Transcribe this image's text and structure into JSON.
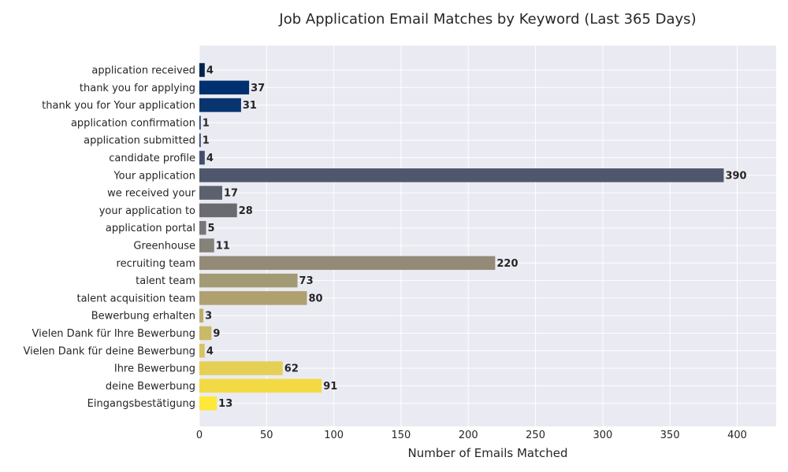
{
  "chart_data": {
    "type": "bar",
    "orientation": "horizontal",
    "title": "Job Application Email Matches by Keyword (Last 365 Days)",
    "xlabel": "Number of Emails Matched",
    "ylabel": "",
    "xlim": [
      0,
      429
    ],
    "xticks": [
      0,
      50,
      100,
      150,
      200,
      250,
      300,
      350,
      400
    ],
    "grid": true,
    "legend": "none",
    "background": "#eaeaf2",
    "categories": [
      "application received",
      "thank you for applying",
      "thank you for Your application",
      "application confirmation",
      "application submitted",
      "candidate profile",
      "Your application",
      "we received your",
      "your application to",
      "application portal",
      "Greenhouse",
      "recruiting team",
      "talent team",
      "talent acquisition team",
      "Bewerbung erhalten",
      "Vielen Dank für Ihre Bewerbung",
      "Vielen Dank für deine Bewerbung",
      "Ihre Bewerbung",
      "deine Bewerbung",
      "Eingangsbestätigung"
    ],
    "values": [
      4,
      37,
      31,
      1,
      1,
      4,
      390,
      17,
      28,
      5,
      11,
      220,
      73,
      80,
      3,
      9,
      4,
      62,
      91,
      13
    ],
    "colors": [
      "#00224e",
      "#00306f",
      "#08346f",
      "#233e6c",
      "#343f6e",
      "#434e6c",
      "#4f576c",
      "#5c616e",
      "#696b70",
      "#777676",
      "#858279",
      "#938b78",
      "#a19a74",
      "#aea16f",
      "#bcae6c",
      "#cab968",
      "#d8c363",
      "#e6cf55",
      "#f3da45",
      "#fee838"
    ]
  }
}
